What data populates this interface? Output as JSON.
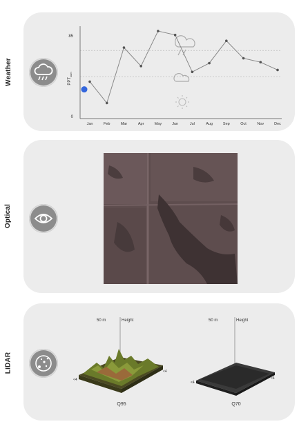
{
  "panels": {
    "weather": {
      "label": "Weather",
      "icon": "cloud-rain-icon"
    },
    "optical": {
      "label": "Optical",
      "icon": "eye-icon"
    },
    "lidar": {
      "label": "LiDAR",
      "icon": "lidar-scan-icon",
      "plots": [
        {
          "height_value": "50 m",
          "height_label": "Height",
          "neg_label": "<4",
          "pos_label": "<4",
          "caption": "Q95"
        },
        {
          "height_value": "50 m",
          "height_label": "Height",
          "neg_label": "<4",
          "pos_label": "<4",
          "caption": "Q70"
        }
      ]
    }
  },
  "chart_data": {
    "type": "line",
    "categories": [
      "Jan",
      "Feb",
      "Mar",
      "Apr",
      "May",
      "Jun",
      "Jul",
      "Aug",
      "Sep",
      "Oct",
      "Nov",
      "Dec"
    ],
    "series": [
      {
        "values": [
          38,
          16,
          73,
          54,
          90,
          86,
          48,
          57,
          80,
          62,
          58,
          50
        ]
      }
    ],
    "ylabel": "PPT",
    "ylabel_sub": "sum",
    "yticks": [
      0,
      85
    ],
    "ylim": [
      0,
      95
    ],
    "reference_lines": [
      70,
      43
    ],
    "marker": {
      "month": "Jan",
      "value": 30,
      "color": "#3366dd"
    },
    "series_color": "#888888"
  }
}
